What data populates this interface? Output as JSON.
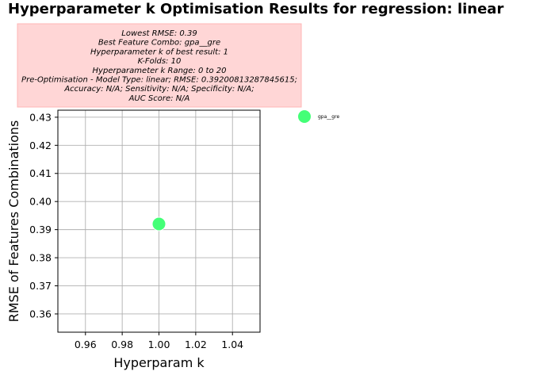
{
  "chart_data": {
    "type": "scatter",
    "title": "Hyperparameter k Optimisation Results for regression: linear",
    "xlabel": "Hyperparam k",
    "ylabel": "RMSE of Features Combinations",
    "xlim": [
      0.945,
      1.055
    ],
    "ylim": [
      0.3535,
      0.4325
    ],
    "xticks": [
      "0.96",
      "0.98",
      "1.00",
      "1.02",
      "1.04"
    ],
    "yticks": [
      "0.36",
      "0.37",
      "0.38",
      "0.39",
      "0.40",
      "0.41",
      "0.42",
      "0.43"
    ],
    "grid": true,
    "legend_position": "outside right",
    "series": [
      {
        "name": "gpa__gre",
        "color": "#44ff77",
        "points": [
          {
            "x": 1,
            "y": 0.39200813287845615
          }
        ]
      }
    ],
    "info_box": {
      "background": "#ffd6d6",
      "border": "#ffb5b5",
      "lines": [
        "Lowest RMSE: 0.39",
        "Best Feature Combo: gpa__gre",
        "Hyperparameter k of best result: 1",
        "K-Folds: 10",
        "Hyperparameter k Range: 0 to 20",
        "Pre-Optimisation - Model Type: linear; RMSE: 0.39200813287845615;",
        "Accuracy: N/A; Sensitivity: N/A; Specificity: N/A;",
        "AUC Score: N/A"
      ]
    }
  }
}
